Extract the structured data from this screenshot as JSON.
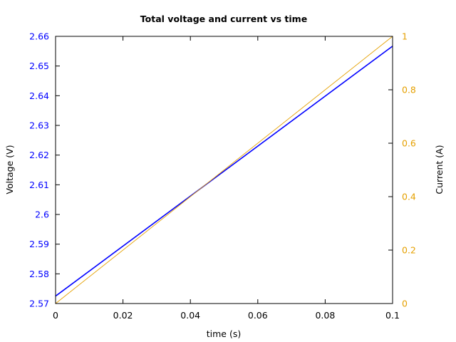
{
  "chart_data": {
    "type": "line",
    "title": "Total voltage and current vs time",
    "xlabel": "time (s)",
    "ylabel": "Voltage (V)",
    "y2label": "Current (A)",
    "xlim": [
      0,
      0.1
    ],
    "ylim": [
      2.57,
      2.66
    ],
    "y2lim": [
      0,
      1
    ],
    "x_ticks": [
      0,
      0.02,
      0.04,
      0.06,
      0.08,
      0.1
    ],
    "x_tick_labels": [
      "0",
      "0.02",
      "0.04",
      "0.06",
      "0.08",
      "0.1"
    ],
    "y_ticks": [
      2.57,
      2.58,
      2.59,
      2.6,
      2.61,
      2.62,
      2.63,
      2.64,
      2.65,
      2.66
    ],
    "y_tick_labels": [
      "2.57",
      "2.58",
      "2.59",
      "2.6",
      "2.61",
      "2.62",
      "2.63",
      "2.64",
      "2.65",
      "2.66"
    ],
    "y2_ticks": [
      0,
      0.2,
      0.4,
      0.6,
      0.8,
      1
    ],
    "y2_tick_labels": [
      "0",
      "0.2",
      "0.4",
      "0.6",
      "0.8",
      "1"
    ],
    "grid": false,
    "series": [
      {
        "axis": "y",
        "color": "#0000ff",
        "x": [
          0,
          0.1
        ],
        "y": [
          2.5725,
          2.6567
        ]
      },
      {
        "axis": "y2",
        "color": "#e5a000",
        "x": [
          0,
          0.1
        ],
        "y": [
          0,
          1
        ]
      }
    ],
    "colors": {
      "voltage_axis": "#0000ff",
      "current_axis": "#e5a000",
      "frame": "#000000"
    }
  }
}
